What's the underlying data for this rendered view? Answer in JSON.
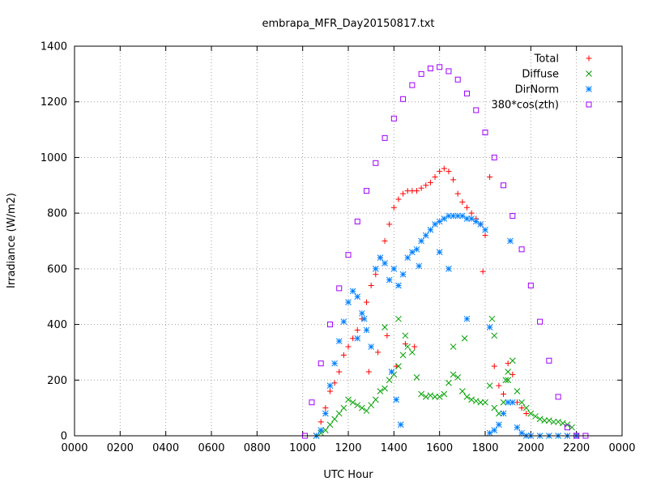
{
  "chart_data": {
    "type": "scatter",
    "title": "embrapa_MFR_Day20150817.txt",
    "xlabel": "UTC Hour",
    "ylabel": "Irradiance (W/m2)",
    "xlim": [
      0,
      24
    ],
    "ylim": [
      0,
      1400
    ],
    "xticks": [
      0,
      2,
      4,
      6,
      8,
      10,
      12,
      14,
      16,
      18,
      20,
      22,
      24
    ],
    "xtick_labels": [
      "0000",
      "0200",
      "0400",
      "0600",
      "0800",
      "1000",
      "1200",
      "1400",
      "1600",
      "1800",
      "2000",
      "2200",
      "0000"
    ],
    "yticks": [
      0,
      200,
      400,
      600,
      800,
      1000,
      1200,
      1400
    ],
    "ytick_labels": [
      "0",
      "200",
      "400",
      "600",
      "800",
      "1000",
      "1200",
      "1400"
    ],
    "grid": true,
    "legend": "top-right",
    "series": [
      {
        "name": "Total",
        "marker": "plus",
        "color": "#ff0000",
        "x": [
          10.6,
          10.8,
          11.0,
          11.2,
          11.4,
          11.6,
          11.8,
          12.0,
          12.2,
          12.4,
          12.6,
          12.8,
          13.0,
          13.2,
          13.4,
          13.6,
          13.8,
          14.0,
          14.2,
          14.4,
          14.6,
          14.8,
          15.0,
          15.2,
          15.4,
          15.6,
          15.8,
          16.0,
          16.2,
          16.4,
          16.6,
          16.8,
          17.0,
          17.2,
          17.4,
          17.6,
          17.8,
          18.0,
          18.2,
          18.4,
          18.6,
          18.8,
          19.0,
          19.2,
          19.4,
          19.6,
          19.8,
          20.0,
          12.9,
          13.3,
          13.7,
          14.1,
          14.5,
          14.9,
          17.9
        ],
        "y": [
          0,
          50,
          100,
          160,
          190,
          230,
          290,
          320,
          350,
          380,
          420,
          480,
          540,
          580,
          640,
          700,
          760,
          820,
          850,
          870,
          880,
          880,
          880,
          890,
          900,
          910,
          930,
          950,
          960,
          950,
          920,
          870,
          840,
          820,
          800,
          780,
          760,
          720,
          930,
          250,
          180,
          150,
          260,
          220,
          120,
          100,
          80,
          0,
          230,
          300,
          360,
          250,
          330,
          320,
          590
        ]
      },
      {
        "name": "Diffuse",
        "marker": "cross",
        "color": "#00a000",
        "x": [
          10.6,
          10.8,
          11.0,
          11.2,
          11.4,
          11.6,
          11.8,
          12.0,
          12.2,
          12.4,
          12.6,
          12.8,
          13.0,
          13.2,
          13.4,
          13.6,
          13.8,
          14.0,
          14.2,
          14.4,
          14.6,
          14.8,
          15.0,
          15.2,
          15.4,
          15.6,
          15.8,
          16.0,
          16.2,
          16.4,
          16.6,
          16.8,
          17.0,
          17.2,
          17.4,
          17.6,
          17.8,
          18.0,
          18.2,
          18.4,
          18.6,
          18.8,
          19.0,
          19.2,
          19.4,
          19.6,
          19.8,
          20.0,
          20.2,
          20.4,
          20.6,
          20.8,
          21.0,
          21.2,
          21.4,
          21.6,
          21.8,
          22.0,
          13.6,
          14.2,
          14.5,
          16.6,
          17.1,
          18.3,
          18.4,
          18.9,
          19.0
        ],
        "y": [
          0,
          10,
          20,
          40,
          60,
          80,
          100,
          130,
          120,
          110,
          100,
          90,
          110,
          130,
          160,
          170,
          200,
          220,
          250,
          290,
          320,
          300,
          210,
          150,
          140,
          145,
          140,
          140,
          150,
          190,
          220,
          210,
          160,
          140,
          130,
          125,
          120,
          120,
          180,
          100,
          80,
          120,
          200,
          270,
          160,
          120,
          100,
          80,
          70,
          60,
          55,
          55,
          50,
          50,
          45,
          40,
          30,
          0,
          390,
          420,
          360,
          320,
          350,
          420,
          360,
          200,
          230
        ]
      },
      {
        "name": "DirNorm",
        "marker": "star",
        "color": "#0080ff",
        "x": [
          10.6,
          10.8,
          11.0,
          11.2,
          11.4,
          11.6,
          11.8,
          12.0,
          12.2,
          12.4,
          12.6,
          12.8,
          13.0,
          13.2,
          13.4,
          13.6,
          13.8,
          14.0,
          14.2,
          14.4,
          14.6,
          14.8,
          15.0,
          15.2,
          15.4,
          15.6,
          15.8,
          16.0,
          16.2,
          16.4,
          16.6,
          16.8,
          17.0,
          17.2,
          17.4,
          17.6,
          17.8,
          18.0,
          18.2,
          18.4,
          18.6,
          18.8,
          19.0,
          19.2,
          19.4,
          19.6,
          19.8,
          20.0,
          20.4,
          20.8,
          21.2,
          21.6,
          22.0,
          12.4,
          12.7,
          13.9,
          14.1,
          14.3,
          15.1,
          16.0,
          16.4,
          17.2,
          18.2,
          19.1
        ],
        "y": [
          0,
          20,
          80,
          180,
          260,
          340,
          410,
          480,
          520,
          500,
          440,
          380,
          320,
          600,
          640,
          620,
          560,
          600,
          540,
          580,
          640,
          660,
          670,
          700,
          720,
          740,
          760,
          770,
          780,
          790,
          790,
          790,
          790,
          780,
          780,
          770,
          760,
          740,
          10,
          20,
          40,
          80,
          120,
          120,
          30,
          10,
          0,
          0,
          0,
          0,
          0,
          0,
          0,
          350,
          420,
          230,
          130,
          40,
          610,
          660,
          600,
          420,
          390,
          700
        ]
      },
      {
        "name": "380*cos(zth)",
        "marker": "box",
        "color": "#a000ff",
        "x": [
          10.1,
          10.4,
          10.8,
          11.2,
          11.6,
          12.0,
          12.4,
          12.8,
          13.2,
          13.6,
          14.0,
          14.4,
          14.8,
          15.2,
          15.6,
          16.0,
          16.4,
          16.8,
          17.2,
          17.6,
          18.0,
          18.4,
          18.8,
          19.2,
          19.6,
          20.0,
          20.4,
          20.8,
          21.2,
          21.6,
          22.0,
          22.4
        ],
        "y": [
          0,
          120,
          260,
          400,
          530,
          650,
          770,
          880,
          980,
          1070,
          1140,
          1210,
          1260,
          1300,
          1320,
          1325,
          1310,
          1280,
          1230,
          1170,
          1090,
          1000,
          900,
          790,
          670,
          540,
          410,
          270,
          140,
          30,
          0,
          0
        ]
      }
    ]
  }
}
